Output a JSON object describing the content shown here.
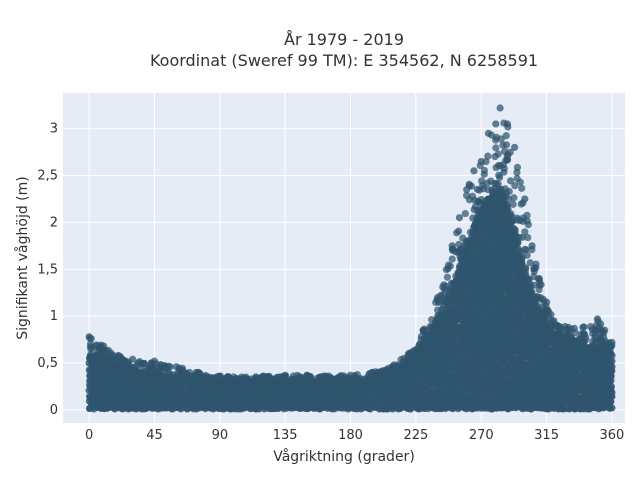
{
  "chart_data": {
    "type": "scatter",
    "title_line1": "År 1979 - 2019",
    "title_line2": "Koordinat (Sweref 99 TM): E 354562, N 6258591",
    "xlabel": "Vågriktning (grader)",
    "ylabel": "Signifikant våghöjd (m)",
    "xlim": [
      -18,
      369
    ],
    "ylim": [
      -0.14,
      3.38
    ],
    "x_ticks": [
      0,
      45,
      90,
      135,
      180,
      225,
      270,
      315,
      360
    ],
    "x_tick_labels": [
      "0",
      "45",
      "90",
      "135",
      "180",
      "225",
      "270",
      "315",
      "360"
    ],
    "y_ticks": [
      0,
      0.5,
      1,
      1.5,
      2,
      2.5,
      3
    ],
    "y_tick_labels": [
      "0",
      "0,5",
      "1",
      "1,5",
      "2",
      "2,5",
      "3"
    ],
    "grid": true,
    "marker_color": "#2f556e",
    "background_color": "#e5ecf6",
    "envelope_upper": [
      [
        0,
        0.78
      ],
      [
        10,
        0.68
      ],
      [
        20,
        0.58
      ],
      [
        30,
        0.54
      ],
      [
        45,
        0.52
      ],
      [
        60,
        0.46
      ],
      [
        75,
        0.4
      ],
      [
        90,
        0.36
      ],
      [
        105,
        0.35
      ],
      [
        120,
        0.36
      ],
      [
        135,
        0.37
      ],
      [
        150,
        0.37
      ],
      [
        165,
        0.36
      ],
      [
        180,
        0.37
      ],
      [
        195,
        0.4
      ],
      [
        210,
        0.48
      ],
      [
        220,
        0.6
      ],
      [
        230,
        0.85
      ],
      [
        240,
        1.2
      ],
      [
        250,
        1.75
      ],
      [
        255,
        2.05
      ],
      [
        260,
        2.35
      ],
      [
        265,
        2.55
      ],
      [
        270,
        2.65
      ],
      [
        275,
        2.95
      ],
      [
        280,
        3.05
      ],
      [
        283,
        3.22
      ],
      [
        288,
        3.05
      ],
      [
        293,
        2.8
      ],
      [
        300,
        2.25
      ],
      [
        305,
        1.75
      ],
      [
        310,
        1.4
      ],
      [
        315,
        1.15
      ],
      [
        320,
        0.95
      ],
      [
        330,
        0.88
      ],
      [
        340,
        0.88
      ],
      [
        350,
        0.97
      ],
      [
        355,
        0.85
      ],
      [
        360,
        0.72
      ]
    ],
    "envelope_dense": [
      [
        0,
        0.55
      ],
      [
        15,
        0.45
      ],
      [
        30,
        0.4
      ],
      [
        45,
        0.36
      ],
      [
        60,
        0.32
      ],
      [
        90,
        0.28
      ],
      [
        120,
        0.28
      ],
      [
        150,
        0.28
      ],
      [
        180,
        0.28
      ],
      [
        200,
        0.32
      ],
      [
        215,
        0.42
      ],
      [
        225,
        0.55
      ],
      [
        235,
        0.8
      ],
      [
        245,
        1.1
      ],
      [
        255,
        1.5
      ],
      [
        265,
        1.95
      ],
      [
        275,
        2.25
      ],
      [
        283,
        2.35
      ],
      [
        290,
        2.1
      ],
      [
        298,
        1.6
      ],
      [
        305,
        1.25
      ],
      [
        312,
        0.98
      ],
      [
        320,
        0.8
      ],
      [
        335,
        0.68
      ],
      [
        350,
        0.65
      ],
      [
        360,
        0.58
      ]
    ]
  }
}
